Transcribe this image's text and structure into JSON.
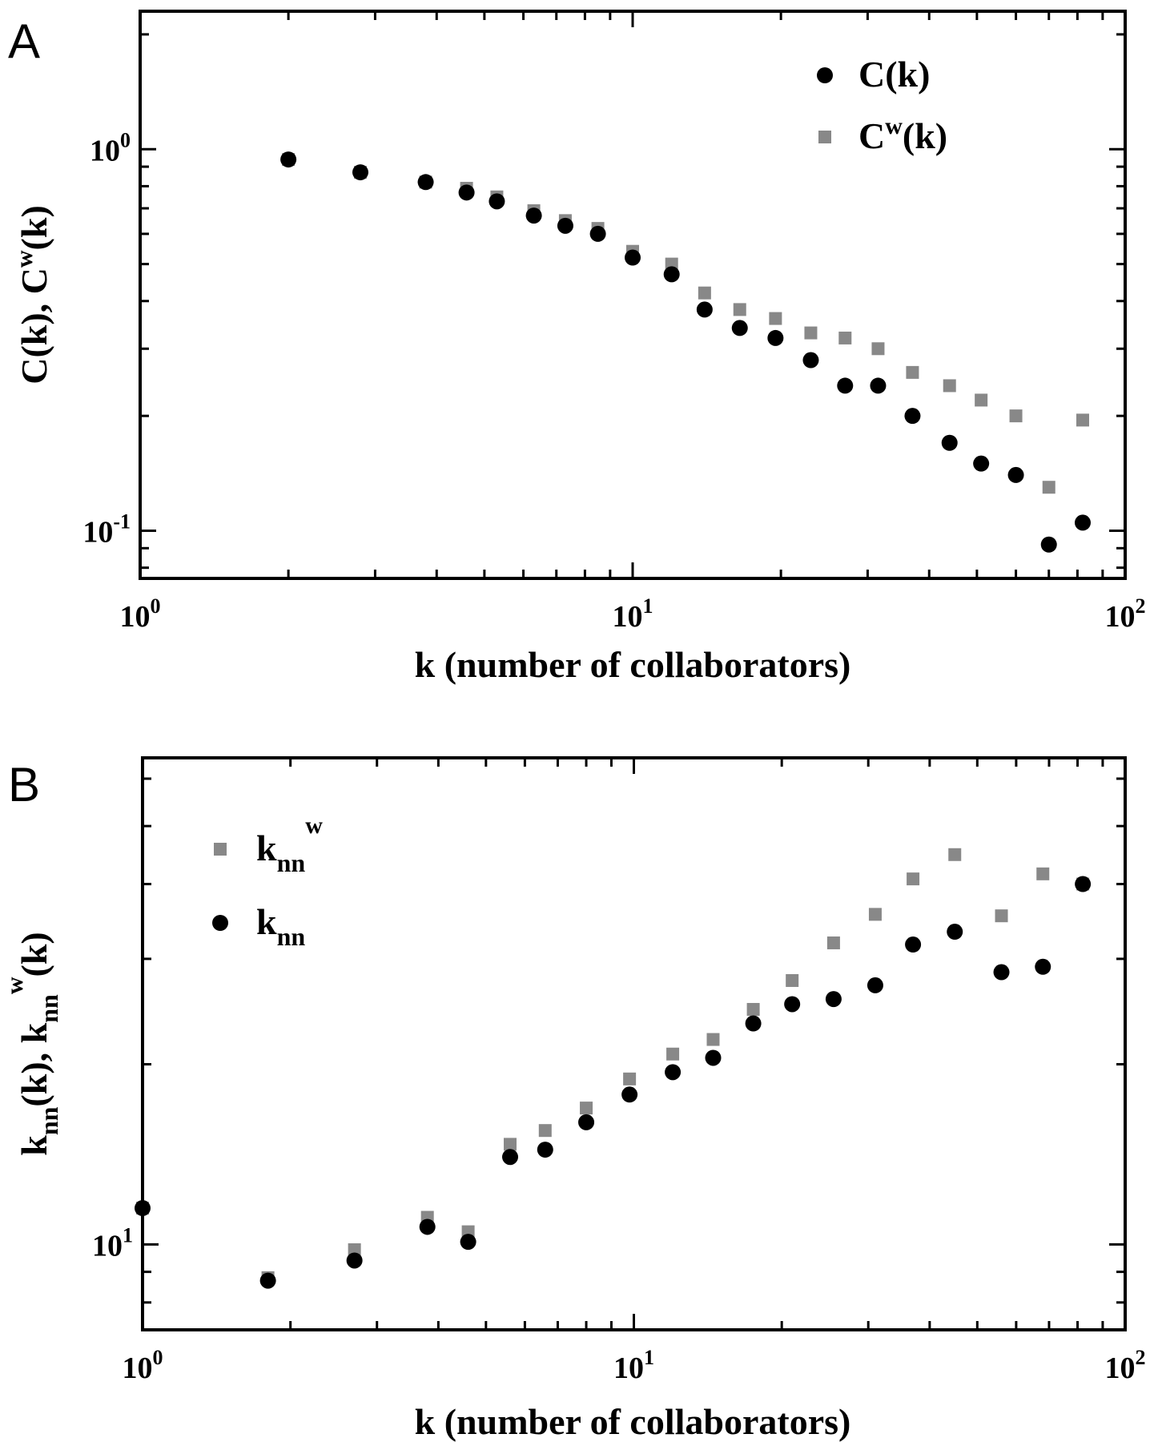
{
  "chart_data": [
    {
      "panel": "A",
      "type": "scatter",
      "xscale": "log",
      "yscale": "log",
      "xlim": [
        1,
        100
      ],
      "ylim": [
        0.075,
        2.3
      ],
      "x_ticks": [
        {
          "value": 1,
          "base": "10",
          "exp": "0"
        },
        {
          "value": 10,
          "base": "10",
          "exp": "1"
        },
        {
          "value": 100,
          "base": "10",
          "exp": "2"
        }
      ],
      "y_ticks": [
        {
          "value": 0.1,
          "base": "10",
          "exp": "-1"
        },
        {
          "value": 1,
          "base": "10",
          "exp": "0"
        }
      ],
      "xlabel": "k (number of collaborators)",
      "ylabel": {
        "p1": "C(k), C",
        "p1_sup": "w",
        "p2": "(k)"
      },
      "legend_position": "top-right",
      "legend": [
        {
          "series": 0,
          "text": "C(k)",
          "sup": ""
        },
        {
          "series": 1,
          "text": "C",
          "sup": "w",
          "text2": "(k)"
        }
      ],
      "series": [
        {
          "color": "#000000",
          "marker": "circle",
          "points": [
            [
              2.0,
              0.94
            ],
            [
              2.8,
              0.87
            ],
            [
              3.8,
              0.82
            ],
            [
              4.6,
              0.77
            ],
            [
              5.3,
              0.73
            ],
            [
              6.3,
              0.67
            ],
            [
              7.3,
              0.63
            ],
            [
              8.5,
              0.6
            ],
            [
              10,
              0.52
            ],
            [
              12,
              0.47
            ],
            [
              14,
              0.38
            ],
            [
              16.5,
              0.34
            ],
            [
              19.5,
              0.32
            ],
            [
              23,
              0.28
            ],
            [
              27,
              0.24
            ],
            [
              31.5,
              0.24
            ],
            [
              37,
              0.2
            ],
            [
              44,
              0.17
            ],
            [
              51,
              0.15
            ],
            [
              60,
              0.14
            ],
            [
              70,
              0.092
            ],
            [
              82,
              0.105
            ]
          ]
        },
        {
          "color": "#888888",
          "marker": "square",
          "points": [
            [
              2.0,
              0.94
            ],
            [
              2.8,
              0.87
            ],
            [
              3.8,
              0.82
            ],
            [
              4.6,
              0.79
            ],
            [
              5.3,
              0.75
            ],
            [
              6.3,
              0.69
            ],
            [
              7.3,
              0.65
            ],
            [
              8.5,
              0.62
            ],
            [
              10,
              0.54
            ],
            [
              12,
              0.5
            ],
            [
              14,
              0.42
            ],
            [
              16.5,
              0.38
            ],
            [
              19.5,
              0.36
            ],
            [
              23,
              0.33
            ],
            [
              27,
              0.32
            ],
            [
              31.5,
              0.3
            ],
            [
              37,
              0.26
            ],
            [
              44,
              0.24
            ],
            [
              51,
              0.22
            ],
            [
              60,
              0.2
            ],
            [
              70,
              0.13
            ],
            [
              82,
              0.195
            ]
          ]
        }
      ]
    },
    {
      "panel": "B",
      "type": "scatter",
      "xscale": "log",
      "yscale": "log",
      "xlim": [
        1,
        100
      ],
      "ylim": [
        7.2,
        65
      ],
      "x_ticks": [
        {
          "value": 1,
          "base": "10",
          "exp": "0"
        },
        {
          "value": 10,
          "base": "10",
          "exp": "1"
        },
        {
          "value": 100,
          "base": "10",
          "exp": "2"
        }
      ],
      "y_ticks": [
        {
          "value": 10,
          "base": "10",
          "exp": "1"
        }
      ],
      "xlabel": "k (number of collaborators)",
      "ylabel": {
        "p1": "k",
        "p1_sub": "nn",
        "p2": "(k), k",
        "p2_sub": "nn",
        "p2_sup": "w",
        "p3": "(k)"
      },
      "legend_position": "top-left",
      "legend": [
        {
          "series": 1,
          "text": "k",
          "sub": "nn",
          "sup": "w"
        },
        {
          "series": 0,
          "text": "k",
          "sub": "nn",
          "sup": ""
        }
      ],
      "series": [
        {
          "color": "#000000",
          "marker": "circle",
          "points": [
            [
              1.0,
              11.5
            ],
            [
              1.8,
              8.7
            ],
            [
              2.7,
              9.4
            ],
            [
              3.8,
              10.7
            ],
            [
              4.6,
              10.1
            ],
            [
              5.6,
              14.0
            ],
            [
              6.6,
              14.4
            ],
            [
              8.0,
              16.0
            ],
            [
              9.8,
              17.8
            ],
            [
              12,
              19.4
            ],
            [
              14.5,
              20.5
            ],
            [
              17.5,
              23.4
            ],
            [
              21,
              25.2
            ],
            [
              25.5,
              25.7
            ],
            [
              31,
              27.1
            ],
            [
              37,
              31.7
            ],
            [
              45,
              33.3
            ],
            [
              56,
              28.5
            ],
            [
              68,
              29.1
            ],
            [
              82,
              40.0
            ]
          ]
        },
        {
          "color": "#888888",
          "marker": "square",
          "points": [
            [
              1.0,
              11.5
            ],
            [
              1.8,
              8.8
            ],
            [
              2.7,
              9.8
            ],
            [
              3.8,
              11.1
            ],
            [
              4.6,
              10.5
            ],
            [
              5.6,
              14.7
            ],
            [
              6.6,
              15.5
            ],
            [
              8.0,
              16.9
            ],
            [
              9.8,
              18.9
            ],
            [
              12,
              20.8
            ],
            [
              14.5,
              22.0
            ],
            [
              17.5,
              24.7
            ],
            [
              21,
              27.6
            ],
            [
              25.5,
              31.9
            ],
            [
              31,
              35.6
            ],
            [
              37,
              40.8
            ],
            [
              45,
              44.8
            ],
            [
              56,
              35.4
            ],
            [
              68,
              41.6
            ],
            [
              82,
              40.0
            ]
          ]
        }
      ]
    }
  ]
}
